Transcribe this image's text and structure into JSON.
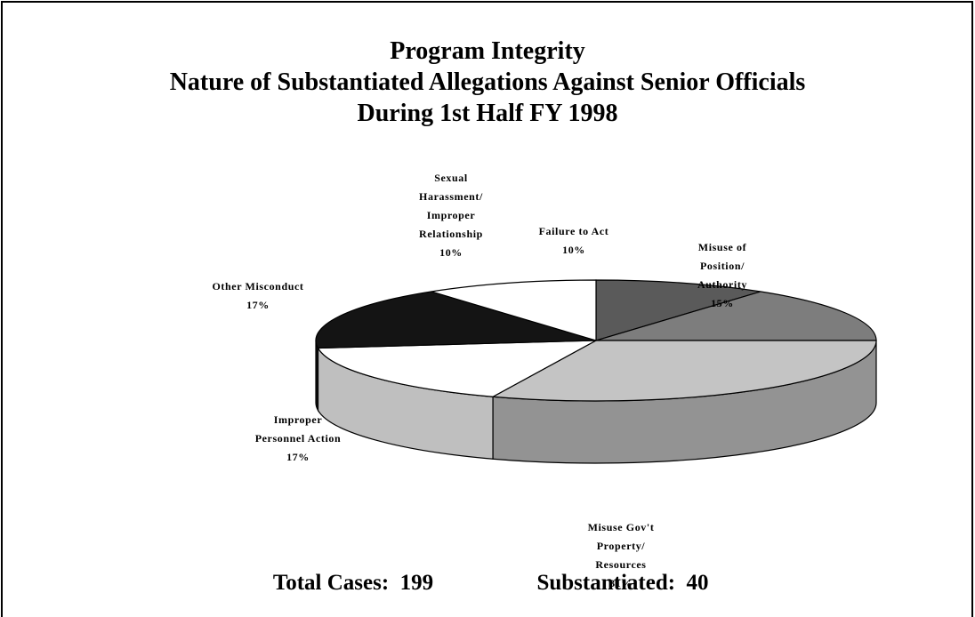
{
  "chart_data": {
    "type": "pie",
    "title": "Program Integrity",
    "subtitle": "Nature of Substantiated Allegations Against Senior Officials\nDuring 1st Half FY 1998",
    "categories": [
      "Failure to Act",
      "Misuse of\nPosition/\nAuthority",
      "Misuse Gov't\nProperty/\nResources",
      "Improper\nPersonnel Action",
      "Other Misconduct",
      "Sexual\nHarassment/\nImproper\nRelationship"
    ],
    "values": [
      10,
      15,
      31,
      17,
      17,
      10
    ],
    "value_labels": [
      "10%",
      "15%",
      "31%",
      "17%",
      "17%",
      "10%"
    ],
    "colors": [
      "#5a5a5a",
      "#7d7d7d",
      "#c4c4c4",
      "#ffffff",
      "#141414",
      "#ffffff"
    ],
    "footer": [
      {
        "label": "Total Cases:",
        "value": 199
      },
      {
        "label": "Substantiated:",
        "value": 40
      }
    ]
  }
}
